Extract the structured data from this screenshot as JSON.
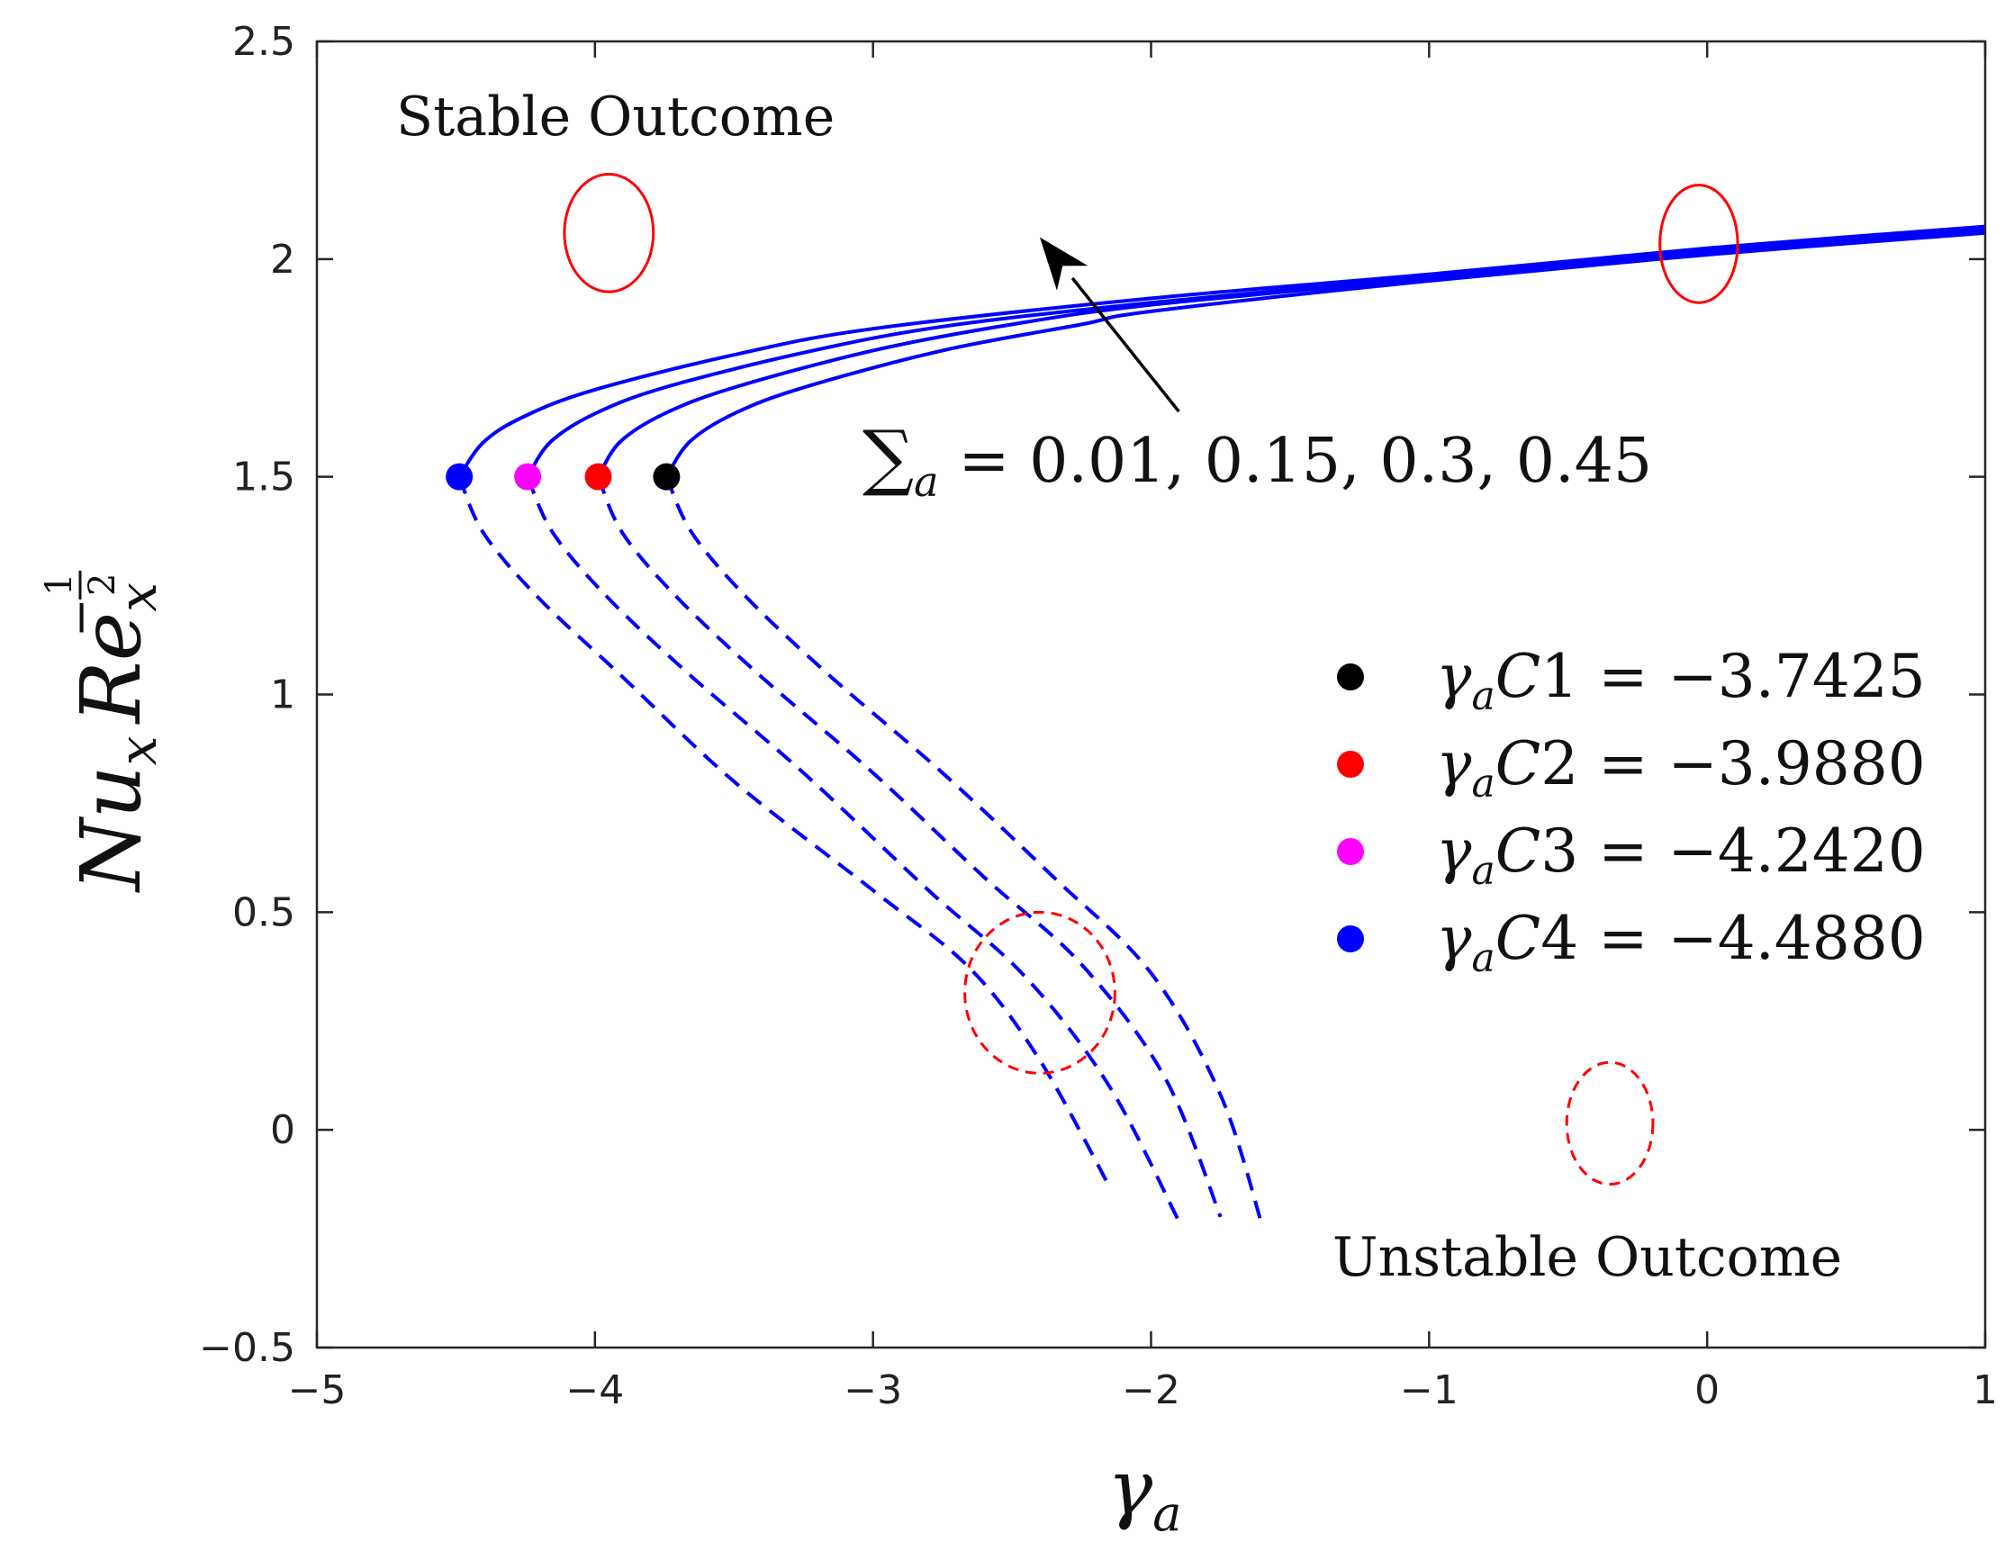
{
  "chart_data": {
    "type": "line",
    "title": "",
    "xlabel": "γ_a",
    "xlabel_base": "γ",
    "xlabel_sub": "a",
    "ylabel": "Nu_x Re_x^(-1/2)",
    "ylabel_parts": {
      "nu": "Nu",
      "nu_sub": "x",
      "re": "Re",
      "re_sub": "x",
      "exp_sign": "−",
      "exp_num": "1",
      "exp_den": "2"
    },
    "xlim": [
      -5,
      1
    ],
    "ylim": [
      -0.5,
      2.5
    ],
    "xticks": [
      -5,
      -4,
      -3,
      -2,
      -1,
      0,
      1
    ],
    "xtick_labels": [
      "−5",
      "−4",
      "−3",
      "−2",
      "−1",
      "0",
      "1"
    ],
    "yticks": [
      -0.5,
      0,
      0.5,
      1,
      1.5,
      2,
      2.5
    ],
    "ytick_labels": [
      "−0.5",
      "0",
      "0.5",
      "1",
      "1.5",
      "2",
      "2.5"
    ],
    "grid": false,
    "line_color": "#0000ff",
    "annotation_color": "#ff0000",
    "series": [
      {
        "name": "Σa = 0.01",
        "critical_x": -4.488,
        "critical_y": 1.5,
        "upper": {
          "line_style": "solid",
          "x": [
            -4.488,
            -4.4,
            -4.25,
            -4.0,
            -3.5,
            -3.0,
            -2.0,
            -1.0,
            0.0,
            1.0
          ],
          "y": [
            1.5,
            1.58,
            1.64,
            1.7,
            1.78,
            1.84,
            1.91,
            1.965,
            2.025,
            2.075
          ]
        },
        "lower": {
          "line_style": "dashed",
          "x": [
            -4.488,
            -4.4,
            -4.2,
            -3.9,
            -3.5,
            -3.0,
            -2.65,
            -2.4,
            -2.15
          ],
          "y": [
            1.5,
            1.37,
            1.22,
            1.04,
            0.8,
            0.55,
            0.37,
            0.16,
            -0.13
          ]
        }
      },
      {
        "name": "Σa = 0.15",
        "critical_x": -4.242,
        "critical_y": 1.5,
        "upper": {
          "line_style": "solid",
          "x": [
            -4.242,
            -4.16,
            -4.0,
            -3.75,
            -3.25,
            -2.75,
            -2.0,
            -1.0,
            0.0,
            1.0
          ],
          "y": [
            1.5,
            1.58,
            1.645,
            1.705,
            1.785,
            1.845,
            1.9,
            1.96,
            2.02,
            2.07
          ]
        },
        "lower": {
          "line_style": "dashed",
          "x": [
            -4.242,
            -4.15,
            -3.95,
            -3.65,
            -3.25,
            -2.8,
            -2.45,
            -2.15,
            -1.9
          ],
          "y": [
            1.5,
            1.37,
            1.22,
            1.04,
            0.82,
            0.55,
            0.35,
            0.1,
            -0.21
          ]
        }
      },
      {
        "name": "Σa = 0.3",
        "critical_x": -3.988,
        "critical_y": 1.5,
        "upper": {
          "line_style": "solid",
          "x": [
            -3.988,
            -3.91,
            -3.75,
            -3.5,
            -3.0,
            -2.5,
            -2.0,
            -1.0,
            0.0,
            1.0
          ],
          "y": [
            1.5,
            1.58,
            1.645,
            1.705,
            1.79,
            1.85,
            1.895,
            1.955,
            2.015,
            2.065
          ]
        },
        "lower": {
          "line_style": "dashed",
          "x": [
            -3.988,
            -3.9,
            -3.7,
            -3.4,
            -3.0,
            -2.6,
            -2.25,
            -1.95,
            -1.75
          ],
          "y": [
            1.5,
            1.37,
            1.22,
            1.04,
            0.82,
            0.58,
            0.38,
            0.12,
            -0.2
          ]
        }
      },
      {
        "name": "Σa = 0.45",
        "critical_x": -3.7425,
        "critical_y": 1.5,
        "upper": {
          "line_style": "solid",
          "x": [
            -3.7425,
            -3.66,
            -3.5,
            -3.25,
            -2.75,
            -2.25,
            -2.0,
            -1.0,
            0.0,
            1.0
          ],
          "y": [
            1.5,
            1.58,
            1.645,
            1.705,
            1.79,
            1.85,
            1.88,
            1.95,
            2.01,
            2.06
          ]
        },
        "lower": {
          "line_style": "dashed",
          "x": [
            -3.7425,
            -3.65,
            -3.45,
            -3.15,
            -2.75,
            -2.35,
            -2.0,
            -1.75,
            -1.6
          ],
          "y": [
            1.5,
            1.37,
            1.22,
            1.04,
            0.82,
            0.58,
            0.36,
            0.08,
            -0.22
          ]
        }
      }
    ],
    "critical_points": [
      {
        "label": "C1",
        "value": "−3.7425",
        "x": -3.7425,
        "y": 1.5,
        "color": "#000000"
      },
      {
        "label": "C2",
        "value": "−3.9880",
        "x": -3.988,
        "y": 1.5,
        "color": "#ff0000"
      },
      {
        "label": "C3",
        "value": "−4.2420",
        "x": -4.242,
        "y": 1.5,
        "color": "#ff00ff"
      },
      {
        "label": "C4",
        "value": "−4.4880",
        "x": -4.488,
        "y": 1.5,
        "color": "#0000ff"
      }
    ],
    "legend": {
      "placement": "right-middle",
      "prefix_base": "γ",
      "prefix_sub": "a"
    },
    "annotations": {
      "stable_text": "Stable Outcome",
      "unstable_text": "Unstable Outcome",
      "sigma_symbol": "∑",
      "sigma_sub": "a",
      "sigma_values": "= 0.01, 0.15, 0.3, 0.45",
      "arrow": {
        "from": [
          -1.9,
          1.65
        ],
        "to": [
          -2.4,
          2.05
        ]
      },
      "stable_ellipses": [
        {
          "cx": -3.95,
          "cy": 2.06,
          "rx": 0.16,
          "ry": 0.135
        },
        {
          "cx": -0.03,
          "cy": 2.035,
          "rx": 0.14,
          "ry": 0.135
        }
      ],
      "unstable_ellipses": [
        {
          "cx": -2.4,
          "cy": 0.315,
          "rx": 0.27,
          "ry": 0.185
        },
        {
          "cx": -0.35,
          "cy": 0.015,
          "rx": 0.155,
          "ry": 0.14
        }
      ]
    }
  }
}
